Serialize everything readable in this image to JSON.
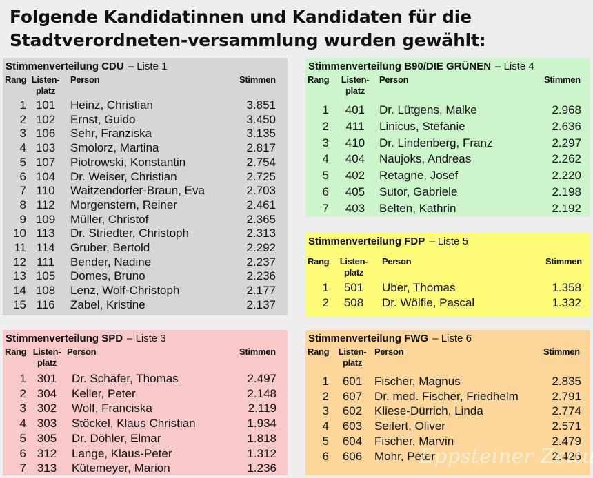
{
  "headline": "Folgende Kandidatinnen und Kandidaten für die Stadtverordneten-versammlung wurden gewählt:",
  "headers": {
    "rang": "Rang",
    "listen_line1": "Listen-",
    "listen_line2": "platz",
    "person": "Person",
    "stimmen": "Stimmen"
  },
  "boxes": [
    {
      "id": "cdu",
      "title_prefix": "Stimmenverteilung",
      "party": "CDU",
      "sep": "–",
      "list": "Liste 1",
      "color": "#d6d6d6",
      "rows": [
        {
          "rang": "1",
          "listenplatz": "101",
          "person": "Heinz, Christian",
          "stimmen": "3.851"
        },
        {
          "rang": "2",
          "listenplatz": "102",
          "person": "Ernst, Guido",
          "stimmen": "3.450"
        },
        {
          "rang": "3",
          "listenplatz": "106",
          "person": "Sehr, Franziska",
          "stimmen": "3.135"
        },
        {
          "rang": "4",
          "listenplatz": "103",
          "person": "Smolorz, Martina",
          "stimmen": "2.817"
        },
        {
          "rang": "5",
          "listenplatz": "107",
          "person": "Piotrowski, Konstantin",
          "stimmen": "2.754"
        },
        {
          "rang": "6",
          "listenplatz": "104",
          "person": "Dr. Weiser, Christian",
          "stimmen": "2.725"
        },
        {
          "rang": "7",
          "listenplatz": "110",
          "person": "Waitzendorfer-Braun, Eva",
          "stimmen": "2.703"
        },
        {
          "rang": "8",
          "listenplatz": "112",
          "person": "Morgenstern, Reiner",
          "stimmen": "2.461"
        },
        {
          "rang": "9",
          "listenplatz": "109",
          "person": "Müller, Christof",
          "stimmen": "2.365"
        },
        {
          "rang": "10",
          "listenplatz": "113",
          "person": "Dr. Striedter, Christoph",
          "stimmen": "2.313"
        },
        {
          "rang": "11",
          "listenplatz": "114",
          "person": "Gruber, Bertold",
          "stimmen": "2.292"
        },
        {
          "rang": "12",
          "listenplatz": "111",
          "person": "Bender, Nadine",
          "stimmen": "2.237"
        },
        {
          "rang": "13",
          "listenplatz": "105",
          "person": "Domes, Bruno",
          "stimmen": "2.236"
        },
        {
          "rang": "14",
          "listenplatz": "108",
          "person": "Lenz, Wolf-Christoph",
          "stimmen": "2.177"
        },
        {
          "rang": "15",
          "listenplatz": "116",
          "person": "Zabel, Kristine",
          "stimmen": "2.137"
        }
      ]
    },
    {
      "id": "spd",
      "title_prefix": "Stimmenverteilung",
      "party": "SPD",
      "sep": "–",
      "list": "Liste 3",
      "color": "#f9c9c9",
      "rows": [
        {
          "rang": "1",
          "listenplatz": "301",
          "person": "Dr. Schäfer, Thomas",
          "stimmen": "2.497"
        },
        {
          "rang": "2",
          "listenplatz": "304",
          "person": "Keller, Peter",
          "stimmen": "2.148"
        },
        {
          "rang": "3",
          "listenplatz": "302",
          "person": "Wolf, Franciska",
          "stimmen": "2.119"
        },
        {
          "rang": "4",
          "listenplatz": "303",
          "person": "Stöckel, Klaus Christian",
          "stimmen": "1.934"
        },
        {
          "rang": "5",
          "listenplatz": "305",
          "person": "Dr. Döhler, Elmar",
          "stimmen": "1.818"
        },
        {
          "rang": "6",
          "listenplatz": "312",
          "person": "Lange, Klaus-Peter",
          "stimmen": "1.312"
        },
        {
          "rang": "7",
          "listenplatz": "313",
          "person": "Kütemeyer, Marion",
          "stimmen": "1.236"
        }
      ]
    },
    {
      "id": "gruene",
      "title_prefix": "Stimmenverteilung",
      "party": "B90/DIE GRÜNEN",
      "sep": "–",
      "list": "Liste 4",
      "color": "#cdf5cc",
      "rows": [
        {
          "rang": "1",
          "listenplatz": "401",
          "person": "Dr. Lütgens, Malke",
          "stimmen": "2.968"
        },
        {
          "rang": "2",
          "listenplatz": "411",
          "person": "Linicus, Stefanie",
          "stimmen": "2.636"
        },
        {
          "rang": "3",
          "listenplatz": "410",
          "person": "Dr. Lindenberg, Franz",
          "stimmen": "2.297"
        },
        {
          "rang": "4",
          "listenplatz": "404",
          "person": "Naujoks, Andreas",
          "stimmen": "2.262"
        },
        {
          "rang": "5",
          "listenplatz": "402",
          "person": "Retagne, Josef",
          "stimmen": "2.220"
        },
        {
          "rang": "6",
          "listenplatz": "405",
          "person": "Sutor, Gabriele",
          "stimmen": "2.198"
        },
        {
          "rang": "7",
          "listenplatz": "403",
          "person": "Belten, Kathrin",
          "stimmen": "2.192"
        }
      ]
    },
    {
      "id": "fdp",
      "title_prefix": "Stimmenverteilung",
      "party": "FDP",
      "sep": "–",
      "list": "Liste 5",
      "color": "#fffc7a",
      "rows": [
        {
          "rang": "1",
          "listenplatz": "501",
          "person": "Uber, Thomas",
          "stimmen": "1.358"
        },
        {
          "rang": "2",
          "listenplatz": "508",
          "person": "Dr. Wölfle, Pascal",
          "stimmen": "1.332"
        }
      ]
    },
    {
      "id": "fwg",
      "title_prefix": "Stimmenverteilung",
      "party": "FWG",
      "sep": "–",
      "list": "Liste 6",
      "color": "#fcd69a",
      "rows": [
        {
          "rang": "1",
          "listenplatz": "601",
          "person": "Fischer, Magnus",
          "stimmen": "2.835"
        },
        {
          "rang": "2",
          "listenplatz": "607",
          "person": "Dr. med. Fischer, Friedhelm",
          "stimmen": "2.791"
        },
        {
          "rang": "3",
          "listenplatz": "602",
          "person": "Kliese-Dürrich, Linda",
          "stimmen": "2.774"
        },
        {
          "rang": "4",
          "listenplatz": "603",
          "person": "Seifert, Oliver",
          "stimmen": "2.571"
        },
        {
          "rang": "5",
          "listenplatz": "604",
          "person": "Fischer, Marvin",
          "stimmen": "2.479"
        },
        {
          "rang": "6",
          "listenplatz": "606",
          "person": "Mohr, Peter",
          "stimmen": "2.426"
        }
      ]
    }
  ],
  "watermark": "Eppsteiner Zeitung"
}
